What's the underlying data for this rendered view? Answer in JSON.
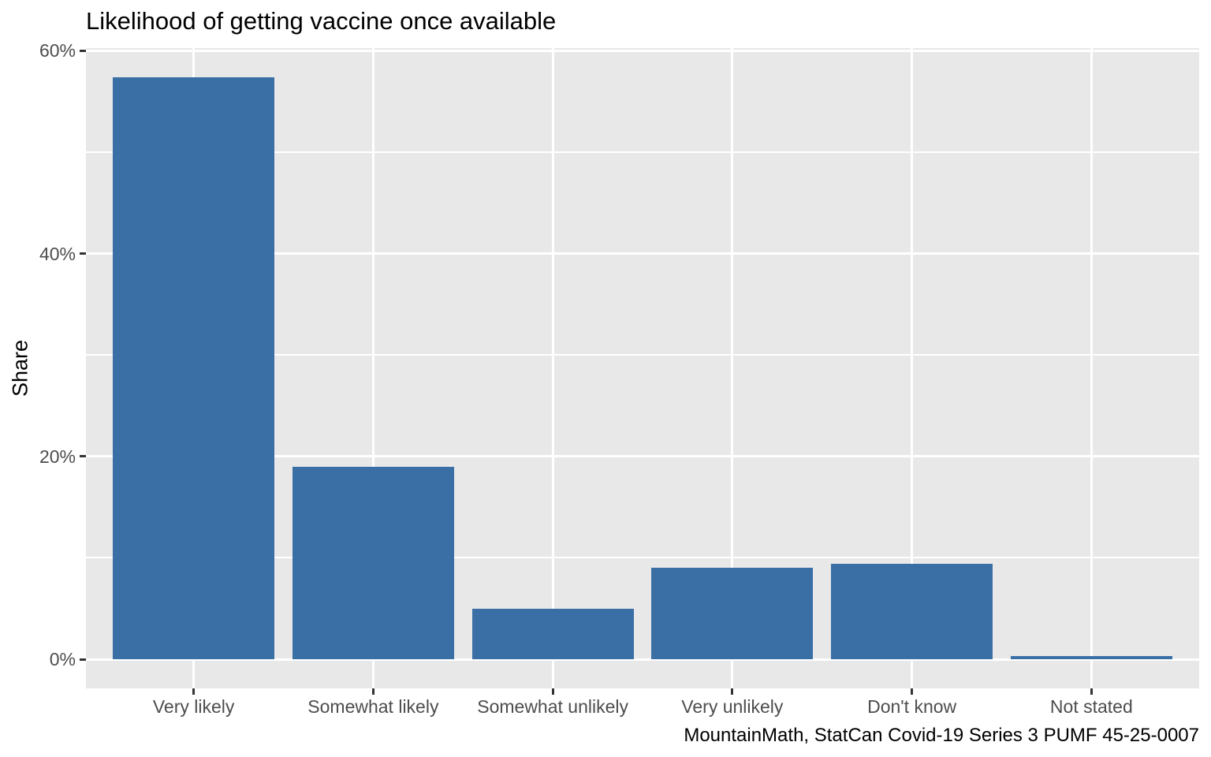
{
  "chart_data": {
    "type": "bar",
    "title": "Likelihood of getting vaccine once available",
    "xlabel": "",
    "ylabel": "Share",
    "caption": "MountainMath, StatCan Covid-19 Series 3 PUMF 45-25-0007",
    "categories": [
      "Very likely",
      "Somewhat likely",
      "Somewhat unlikely",
      "Very unlikely",
      "Don't know",
      "Not stated"
    ],
    "values": [
      57.4,
      19,
      5,
      9,
      9.4,
      0.3
    ],
    "value_unit": "percent",
    "ylim": [
      -2.87,
      60.27
    ],
    "y_major_ticks": [
      0,
      20,
      40,
      60
    ],
    "y_tick_labels": [
      "0%",
      "20%",
      "40%",
      "60%"
    ],
    "y_minor_ticks": [
      10,
      30,
      50
    ],
    "grid": "horizontal major + minor, vertical at category centers",
    "legend_position": "none",
    "bar_rel_width": 0.9,
    "colors": {
      "bar_fill": "#3A6FA6",
      "panel_background": "#E8E8E8",
      "gridline": "#FFFFFF",
      "axis_text": "#4D4D4D",
      "tick_mark": "#333333",
      "title_text": "#000000",
      "outer_background": "#FFFFFF"
    }
  }
}
